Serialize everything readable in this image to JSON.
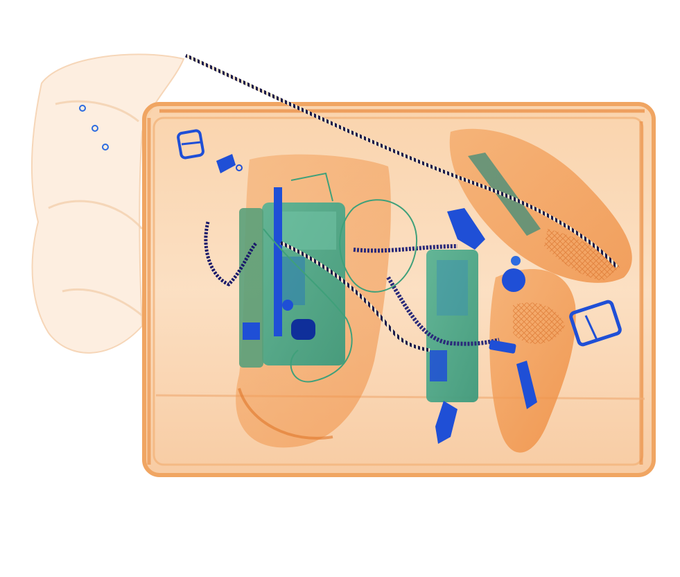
{
  "image": {
    "kind": "x-ray baggage scan",
    "background": "#ffffff",
    "palette": {
      "organic_light": "#fbe1c8",
      "organic_mid": "#f6b580",
      "organic_dark": "#ec7a2a",
      "inorganic_green": "#4aa88a",
      "inorganic_green_dark": "#2f8f72",
      "metal_blue": "#1f4fd6",
      "metal_blue_dark": "#0f2f9a",
      "cloth_pale": "#fdf1e6"
    },
    "objects": [
      "bag-frame",
      "cloth-bundle",
      "shoe-left",
      "shoe-right-top",
      "shoe-right-bottom",
      "phone-left",
      "phone-right",
      "coiled-cable",
      "zipper-wire",
      "buckle-left",
      "buckle-right",
      "clip-small",
      "round-disc",
      "usb-plug",
      "headphone-cable"
    ]
  }
}
